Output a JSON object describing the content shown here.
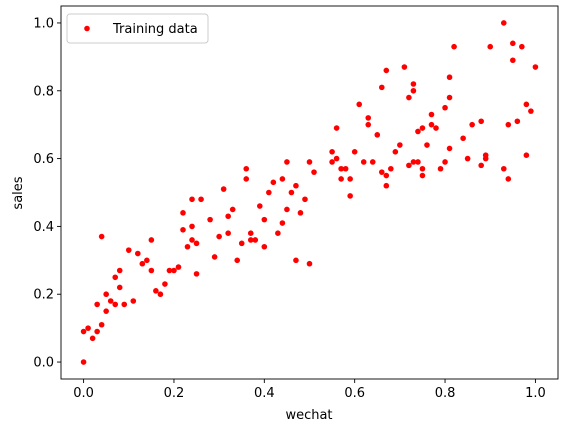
{
  "chart_data": {
    "type": "scatter",
    "title": "",
    "xlabel": "wechat",
    "ylabel": "sales",
    "xlim": [
      -0.05,
      1.05
    ],
    "ylim": [
      -0.05,
      1.05
    ],
    "xticks": [
      0.0,
      0.2,
      0.4,
      0.6,
      0.8,
      1.0
    ],
    "xtick_labels": [
      "0.0",
      "0.2",
      "0.4",
      "0.6",
      "0.8",
      "1.0"
    ],
    "yticks": [
      0.0,
      0.2,
      0.4,
      0.6,
      0.8,
      1.0
    ],
    "ytick_labels": [
      "0.0",
      "0.2",
      "0.4",
      "0.6",
      "0.8",
      "1.0"
    ],
    "grid": false,
    "legend": {
      "position": "top-left",
      "entries": [
        "Training data"
      ]
    },
    "series": [
      {
        "name": "Training data",
        "color": "#ff0000",
        "marker": "circle",
        "points": [
          [
            0.0,
            0.0
          ],
          [
            0.0,
            0.09
          ],
          [
            0.01,
            0.1
          ],
          [
            0.02,
            0.07
          ],
          [
            0.03,
            0.09
          ],
          [
            0.03,
            0.17
          ],
          [
            0.04,
            0.11
          ],
          [
            0.04,
            0.37
          ],
          [
            0.05,
            0.2
          ],
          [
            0.05,
            0.15
          ],
          [
            0.06,
            0.18
          ],
          [
            0.07,
            0.25
          ],
          [
            0.07,
            0.17
          ],
          [
            0.08,
            0.27
          ],
          [
            0.08,
            0.22
          ],
          [
            0.09,
            0.17
          ],
          [
            0.1,
            0.33
          ],
          [
            0.11,
            0.18
          ],
          [
            0.12,
            0.32
          ],
          [
            0.13,
            0.29
          ],
          [
            0.14,
            0.3
          ],
          [
            0.15,
            0.27
          ],
          [
            0.15,
            0.36
          ],
          [
            0.16,
            0.21
          ],
          [
            0.17,
            0.2
          ],
          [
            0.18,
            0.23
          ],
          [
            0.19,
            0.27
          ],
          [
            0.2,
            0.27
          ],
          [
            0.21,
            0.28
          ],
          [
            0.22,
            0.44
          ],
          [
            0.22,
            0.39
          ],
          [
            0.23,
            0.34
          ],
          [
            0.24,
            0.48
          ],
          [
            0.24,
            0.4
          ],
          [
            0.24,
            0.36
          ],
          [
            0.25,
            0.26
          ],
          [
            0.25,
            0.35
          ],
          [
            0.26,
            0.48
          ],
          [
            0.28,
            0.42
          ],
          [
            0.29,
            0.31
          ],
          [
            0.3,
            0.37
          ],
          [
            0.31,
            0.51
          ],
          [
            0.32,
            0.38
          ],
          [
            0.32,
            0.43
          ],
          [
            0.33,
            0.45
          ],
          [
            0.34,
            0.3
          ],
          [
            0.35,
            0.35
          ],
          [
            0.36,
            0.57
          ],
          [
            0.36,
            0.54
          ],
          [
            0.37,
            0.38
          ],
          [
            0.37,
            0.36
          ],
          [
            0.38,
            0.36
          ],
          [
            0.39,
            0.46
          ],
          [
            0.4,
            0.42
          ],
          [
            0.4,
            0.34
          ],
          [
            0.41,
            0.5
          ],
          [
            0.42,
            0.53
          ],
          [
            0.43,
            0.38
          ],
          [
            0.44,
            0.54
          ],
          [
            0.44,
            0.41
          ],
          [
            0.45,
            0.45
          ],
          [
            0.45,
            0.59
          ],
          [
            0.46,
            0.5
          ],
          [
            0.47,
            0.52
          ],
          [
            0.47,
            0.3
          ],
          [
            0.48,
            0.44
          ],
          [
            0.49,
            0.48
          ],
          [
            0.5,
            0.29
          ],
          [
            0.5,
            0.59
          ],
          [
            0.51,
            0.56
          ],
          [
            0.55,
            0.59
          ],
          [
            0.55,
            0.62
          ],
          [
            0.56,
            0.6
          ],
          [
            0.56,
            0.69
          ],
          [
            0.57,
            0.57
          ],
          [
            0.57,
            0.54
          ],
          [
            0.58,
            0.57
          ],
          [
            0.59,
            0.54
          ],
          [
            0.59,
            0.49
          ],
          [
            0.6,
            0.62
          ],
          [
            0.61,
            0.76
          ],
          [
            0.62,
            0.59
          ],
          [
            0.63,
            0.72
          ],
          [
            0.63,
            0.7
          ],
          [
            0.64,
            0.59
          ],
          [
            0.65,
            0.67
          ],
          [
            0.66,
            0.81
          ],
          [
            0.66,
            0.56
          ],
          [
            0.67,
            0.86
          ],
          [
            0.67,
            0.55
          ],
          [
            0.67,
            0.52
          ],
          [
            0.68,
            0.57
          ],
          [
            0.69,
            0.62
          ],
          [
            0.7,
            0.64
          ],
          [
            0.71,
            0.87
          ],
          [
            0.72,
            0.58
          ],
          [
            0.72,
            0.78
          ],
          [
            0.73,
            0.59
          ],
          [
            0.73,
            0.82
          ],
          [
            0.73,
            0.8
          ],
          [
            0.74,
            0.68
          ],
          [
            0.74,
            0.59
          ],
          [
            0.75,
            0.69
          ],
          [
            0.75,
            0.57
          ],
          [
            0.75,
            0.55
          ],
          [
            0.76,
            0.64
          ],
          [
            0.77,
            0.7
          ],
          [
            0.77,
            0.73
          ],
          [
            0.78,
            0.69
          ],
          [
            0.79,
            0.57
          ],
          [
            0.8,
            0.75
          ],
          [
            0.8,
            0.59
          ],
          [
            0.81,
            0.78
          ],
          [
            0.81,
            0.84
          ],
          [
            0.81,
            0.63
          ],
          [
            0.82,
            0.93
          ],
          [
            0.84,
            0.66
          ],
          [
            0.85,
            0.6
          ],
          [
            0.86,
            0.7
          ],
          [
            0.88,
            0.58
          ],
          [
            0.88,
            0.71
          ],
          [
            0.89,
            0.61
          ],
          [
            0.89,
            0.6
          ],
          [
            0.9,
            0.93
          ],
          [
            0.93,
            0.57
          ],
          [
            0.93,
            1.0
          ],
          [
            0.94,
            0.54
          ],
          [
            0.94,
            0.7
          ],
          [
            0.95,
            0.89
          ],
          [
            0.95,
            0.94
          ],
          [
            0.96,
            0.71
          ],
          [
            0.97,
            0.93
          ],
          [
            0.98,
            0.61
          ],
          [
            0.98,
            0.76
          ],
          [
            0.99,
            0.74
          ],
          [
            1.0,
            0.87
          ]
        ]
      }
    ]
  }
}
